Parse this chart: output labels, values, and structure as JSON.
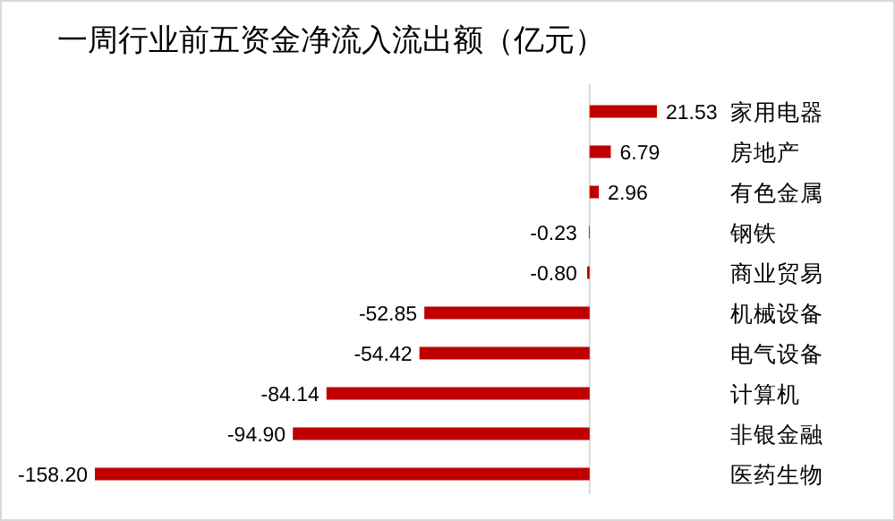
{
  "chart_data": {
    "type": "bar",
    "orientation": "horizontal",
    "title": "一周行业前五资金净流入流出额（亿元）",
    "categories": [
      "家用电器",
      "房地产",
      "有色金属",
      "钢铁",
      "商业贸易",
      "机械设备",
      "电气设备",
      "计算机",
      "非银金融",
      "医药生物"
    ],
    "values": [
      21.53,
      6.79,
      2.96,
      -0.23,
      -0.8,
      -52.85,
      -54.42,
      -84.14,
      -94.9,
      -158.2
    ],
    "color": "#c00000",
    "value_labels": [
      "21.53",
      "6.79",
      "2.96",
      "-0.23",
      "-0.80",
      "-52.85",
      "-54.42",
      "-84.14",
      "-94.90",
      "-158.20"
    ]
  }
}
